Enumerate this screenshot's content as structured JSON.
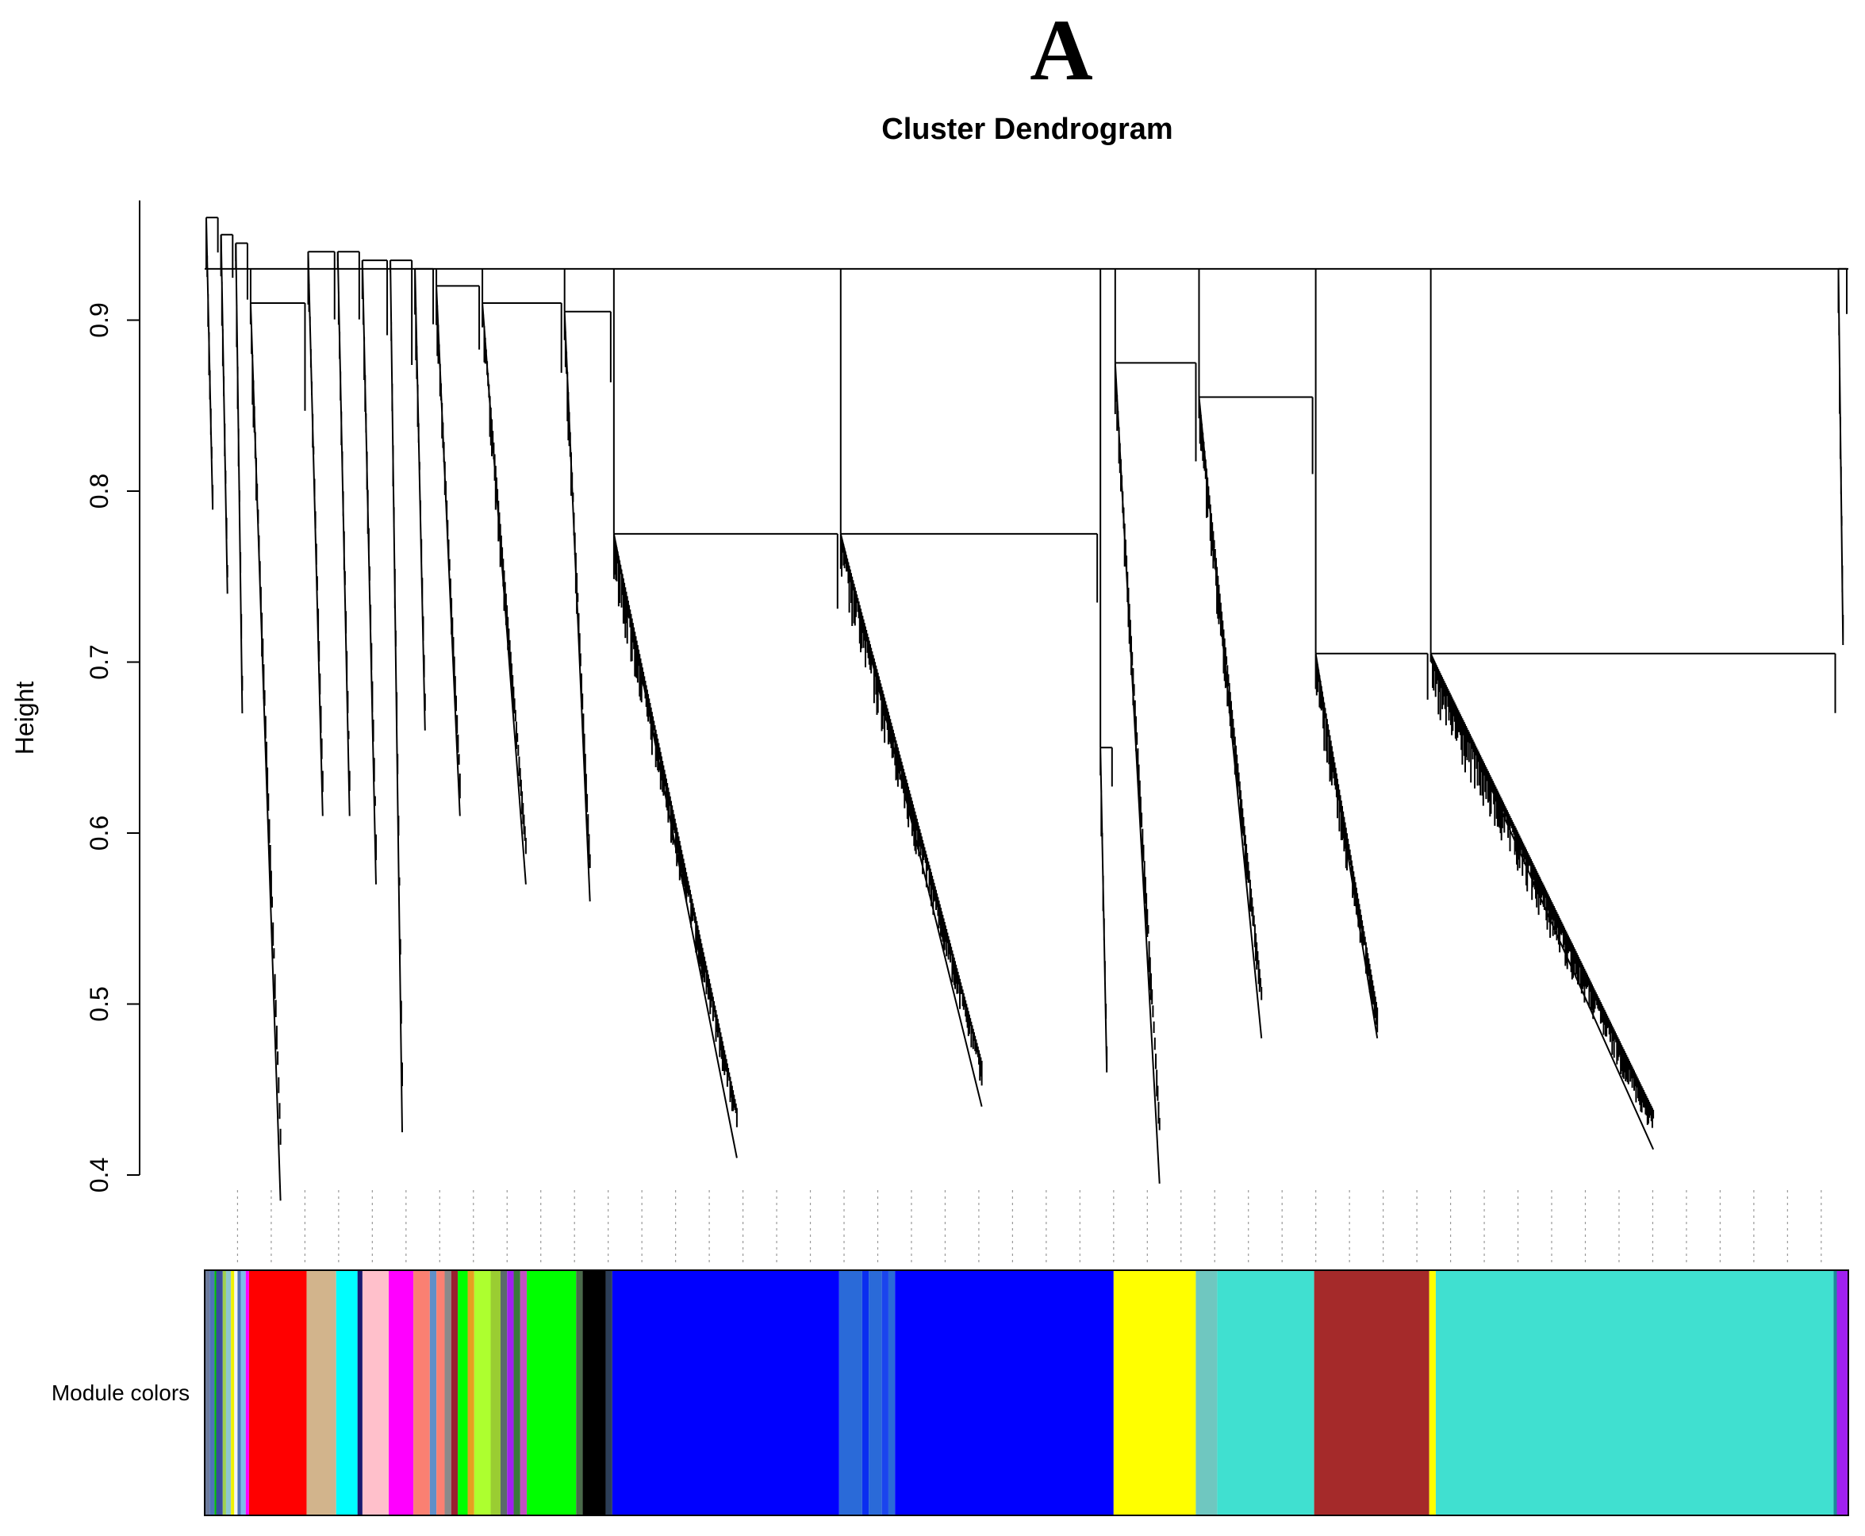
{
  "figure": {
    "panel_letter": "A"
  },
  "chart_data": {
    "type": "dendrogram",
    "title": "Cluster Dendrogram",
    "xlabel": "",
    "ylabel": "Height",
    "ylim": [
      0.4,
      0.97
    ],
    "yticks": [
      0.4,
      0.5,
      0.6,
      0.7,
      0.8,
      0.9
    ],
    "ytick_labels": [
      "0.4",
      "0.5",
      "0.6",
      "0.7",
      "0.8",
      "0.9"
    ],
    "color_bar_label": "Module colors",
    "colors": {
      "tree": "#000000",
      "guide": "#9a9a9a"
    },
    "top_merge_height": 0.93,
    "leaf_span": [
      0,
      1000
    ],
    "branches": [
      {
        "name": "grey-cluster-1",
        "x0": 0,
        "x1": 9,
        "top": 0.96,
        "floor": 0.79
      },
      {
        "name": "grey-cluster-2",
        "x0": 9,
        "x1": 18,
        "top": 0.95,
        "floor": 0.74
      },
      {
        "name": "grey-cluster-3",
        "x0": 18,
        "x1": 27,
        "top": 0.945,
        "floor": 0.67
      },
      {
        "name": "red",
        "x0": 27,
        "x1": 62,
        "top": 0.91,
        "floor": 0.385
      },
      {
        "name": "tan",
        "x0": 62,
        "x1": 80,
        "top": 0.94,
        "floor": 0.61
      },
      {
        "name": "cyan",
        "x0": 80,
        "x1": 95,
        "top": 0.94,
        "floor": 0.61
      },
      {
        "name": "pink",
        "x0": 95,
        "x1": 112,
        "top": 0.935,
        "floor": 0.57
      },
      {
        "name": "magenta",
        "x0": 112,
        "x1": 127,
        "top": 0.935,
        "floor": 0.425
      },
      {
        "name": "salmon",
        "x0": 127,
        "x1": 140,
        "top": 0.93,
        "floor": 0.66
      },
      {
        "name": "greenyellow",
        "x0": 140,
        "x1": 168,
        "top": 0.92,
        "floor": 0.61
      },
      {
        "name": "green",
        "x0": 168,
        "x1": 218,
        "top": 0.91,
        "floor": 0.57
      },
      {
        "name": "black",
        "x0": 218,
        "x1": 248,
        "top": 0.905,
        "floor": 0.56
      },
      {
        "name": "blue-sub-1",
        "x0": 248,
        "x1": 386,
        "top": 0.775,
        "floor": 0.41
      },
      {
        "name": "blue-sub-2",
        "x0": 386,
        "x1": 544,
        "top": 0.775,
        "floor": 0.44
      },
      {
        "name": "blue-sub-3",
        "x0": 544,
        "x1": 553,
        "top": 0.65,
        "floor": 0.46
      },
      {
        "name": "yellow",
        "x0": 553,
        "x1": 604,
        "top": 0.875,
        "floor": 0.395
      },
      {
        "name": "turquoise-sub-1",
        "x0": 604,
        "x1": 675,
        "top": 0.855,
        "floor": 0.48
      },
      {
        "name": "brown",
        "x0": 675,
        "x1": 745,
        "top": 0.705,
        "floor": 0.48
      },
      {
        "name": "turquoise-sub-2",
        "x0": 745,
        "x1": 993,
        "top": 0.705,
        "floor": 0.415
      },
      {
        "name": "purple",
        "x0": 993,
        "x1": 1000,
        "top": 0.93,
        "floor": 0.71
      }
    ],
    "module_colors": [
      {
        "name": "grey",
        "start": 0,
        "end": 3,
        "color": "#6d7b9c"
      },
      {
        "name": "steelblue",
        "start": 3,
        "end": 6,
        "color": "#4f74b8"
      },
      {
        "name": "green",
        "start": 6,
        "end": 7,
        "color": "#00c800"
      },
      {
        "name": "midnightblue",
        "start": 7,
        "end": 11,
        "color": "#3a4c9e"
      },
      {
        "name": "greenyellow",
        "start": 11,
        "end": 13,
        "color": "#9fd050"
      },
      {
        "name": "paleturquoise",
        "start": 13,
        "end": 16,
        "color": "#8ec7cf"
      },
      {
        "name": "yellow",
        "start": 16,
        "end": 18,
        "color": "#f0f000"
      },
      {
        "name": "white",
        "start": 18,
        "end": 20,
        "color": "#f4f4f4"
      },
      {
        "name": "steelblue",
        "start": 20,
        "end": 22,
        "color": "#4f74b8"
      },
      {
        "name": "skyblue",
        "start": 22,
        "end": 25,
        "color": "#7dbbe8"
      },
      {
        "name": "magenta",
        "start": 25,
        "end": 27,
        "color": "#ff00ff"
      },
      {
        "name": "red",
        "start": 27,
        "end": 62,
        "color": "#ff0000"
      },
      {
        "name": "tan",
        "start": 62,
        "end": 80,
        "color": "#d2b48c"
      },
      {
        "name": "cyan",
        "start": 80,
        "end": 93,
        "color": "#00ffff"
      },
      {
        "name": "midnightblue",
        "start": 93,
        "end": 96,
        "color": "#191970"
      },
      {
        "name": "pink",
        "start": 96,
        "end": 112,
        "color": "#ffc0cb"
      },
      {
        "name": "magenta",
        "start": 112,
        "end": 127,
        "color": "#ff00ff"
      },
      {
        "name": "salmon",
        "start": 127,
        "end": 137,
        "color": "#fa8072"
      },
      {
        "name": "steelblue",
        "start": 137,
        "end": 141,
        "color": "#5f8fc8"
      },
      {
        "name": "salmon",
        "start": 141,
        "end": 146,
        "color": "#fa8072"
      },
      {
        "name": "grey60",
        "start": 146,
        "end": 150,
        "color": "#8a8a8a"
      },
      {
        "name": "darkred",
        "start": 150,
        "end": 154,
        "color": "#9a2030"
      },
      {
        "name": "green",
        "start": 154,
        "end": 160,
        "color": "#00ff00"
      },
      {
        "name": "orange",
        "start": 160,
        "end": 164,
        "color": "#e6a020"
      },
      {
        "name": "greenyellow",
        "start": 164,
        "end": 174,
        "color": "#adff2f"
      },
      {
        "name": "yellowgreen",
        "start": 174,
        "end": 180,
        "color": "#9acd32"
      },
      {
        "name": "darkgrey",
        "start": 180,
        "end": 184,
        "color": "#5a6a6a"
      },
      {
        "name": "purple",
        "start": 184,
        "end": 188,
        "color": "#a020f0"
      },
      {
        "name": "darkgreen",
        "start": 188,
        "end": 192,
        "color": "#3a7a3a"
      },
      {
        "name": "violet",
        "start": 192,
        "end": 196,
        "color": "#c050c0"
      },
      {
        "name": "green",
        "start": 196,
        "end": 226,
        "color": "#00ff00"
      },
      {
        "name": "darkolivegreen",
        "start": 226,
        "end": 230,
        "color": "#4a6a4a"
      },
      {
        "name": "black",
        "start": 230,
        "end": 244,
        "color": "#000000"
      },
      {
        "name": "darkslateblue",
        "start": 244,
        "end": 248,
        "color": "#2c3e58"
      },
      {
        "name": "blue",
        "start": 248,
        "end": 386,
        "color": "#0000ff"
      },
      {
        "name": "royalblue",
        "start": 386,
        "end": 400,
        "color": "#2a6ad8"
      },
      {
        "name": "blue",
        "start": 400,
        "end": 404,
        "color": "#0a2ef0"
      },
      {
        "name": "royalblue",
        "start": 404,
        "end": 412,
        "color": "#2a6ad8"
      },
      {
        "name": "blue",
        "start": 412,
        "end": 416,
        "color": "#1a44ee"
      },
      {
        "name": "royalblue",
        "start": 416,
        "end": 420,
        "color": "#2a6ad8"
      },
      {
        "name": "blue",
        "start": 420,
        "end": 553,
        "color": "#0000ff"
      },
      {
        "name": "yellow",
        "start": 553,
        "end": 603,
        "color": "#ffff00"
      },
      {
        "name": "lightcyan",
        "start": 603,
        "end": 616,
        "color": "#6fc7c0"
      },
      {
        "name": "turquoise",
        "start": 616,
        "end": 675,
        "color": "#40e0d0"
      },
      {
        "name": "brown",
        "start": 675,
        "end": 745,
        "color": "#a52a2a"
      },
      {
        "name": "yellow",
        "start": 745,
        "end": 749,
        "color": "#ffff00"
      },
      {
        "name": "turquoise",
        "start": 749,
        "end": 991,
        "color": "#40e0d0"
      },
      {
        "name": "darkturquoise",
        "start": 991,
        "end": 993,
        "color": "#1a8a9a"
      },
      {
        "name": "purple",
        "start": 993,
        "end": 1000,
        "color": "#a020f0"
      }
    ]
  }
}
